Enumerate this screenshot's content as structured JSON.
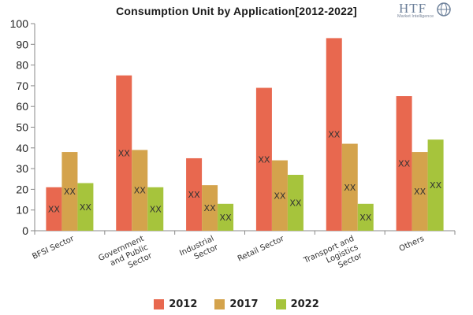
{
  "chart_data": {
    "type": "bar",
    "title": "Consumption Unit by  Application[2012-2022]",
    "categories": [
      [
        "BFSI Sector"
      ],
      [
        "Government",
        "and Public",
        "Sector"
      ],
      [
        "Industrial",
        "Sector"
      ],
      [
        "Retail Sector"
      ],
      [
        "Transport and",
        "Logistics",
        "Sector"
      ],
      [
        "Others"
      ]
    ],
    "series": [
      {
        "name": "2012",
        "color": "#e8684f",
        "values": [
          21,
          75,
          35,
          69,
          93,
          65
        ]
      },
      {
        "name": "2017",
        "color": "#d4a34c",
        "values": [
          38,
          39,
          22,
          34,
          42,
          38
        ]
      },
      {
        "name": "2022",
        "color": "#a6c43c",
        "values": [
          23,
          21,
          13,
          27,
          13,
          44
        ]
      }
    ],
    "data_label": "XX",
    "ylim": [
      0,
      100
    ],
    "yticks": [
      0,
      10,
      20,
      30,
      40,
      50,
      60,
      70,
      80,
      90,
      100
    ],
    "grid": false,
    "legend_position": "bottom"
  },
  "logo": {
    "brand": "HTF",
    "subtitle": "Market Intelligence"
  }
}
